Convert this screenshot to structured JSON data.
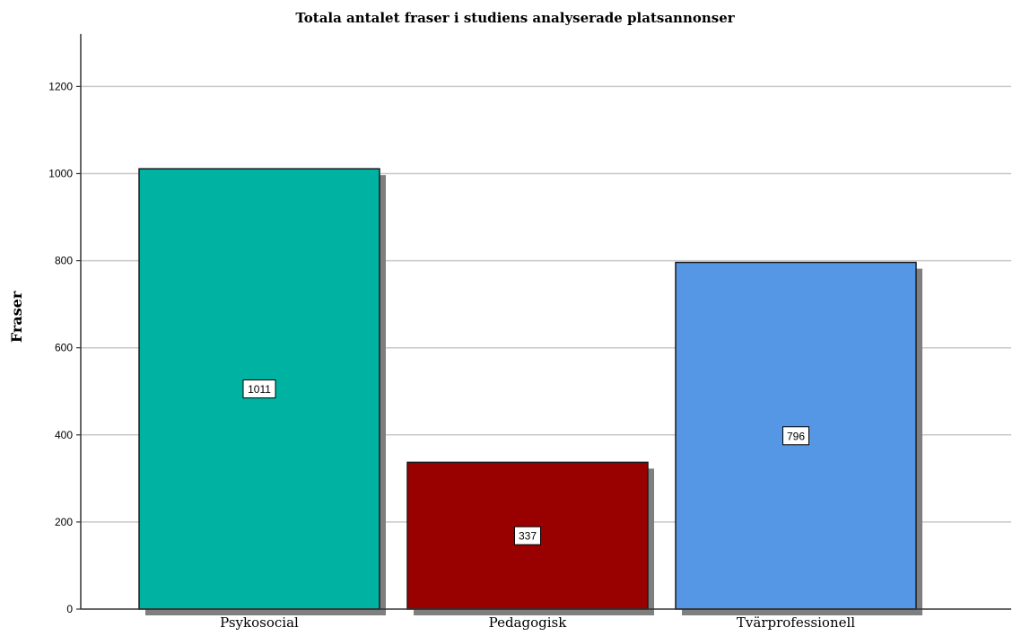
{
  "chart_data": {
    "type": "bar",
    "title": "Totala antalet fraser i studiens analyserade platsannonser",
    "xlabel": "",
    "ylabel": "Fraser",
    "categories": [
      "Psykosocial",
      "Pedagogisk",
      "Tvärprofessionell"
    ],
    "values": [
      1011,
      337,
      796
    ],
    "data_labels": [
      "1011",
      "337",
      "796"
    ],
    "bar_colors": [
      "#00B2A1",
      "#990000",
      "#5697E5"
    ],
    "ylim": [
      0,
      1300
    ],
    "yticks": [
      0,
      200,
      400,
      600,
      800,
      1000,
      1200
    ],
    "grid": true,
    "legend": "none"
  }
}
